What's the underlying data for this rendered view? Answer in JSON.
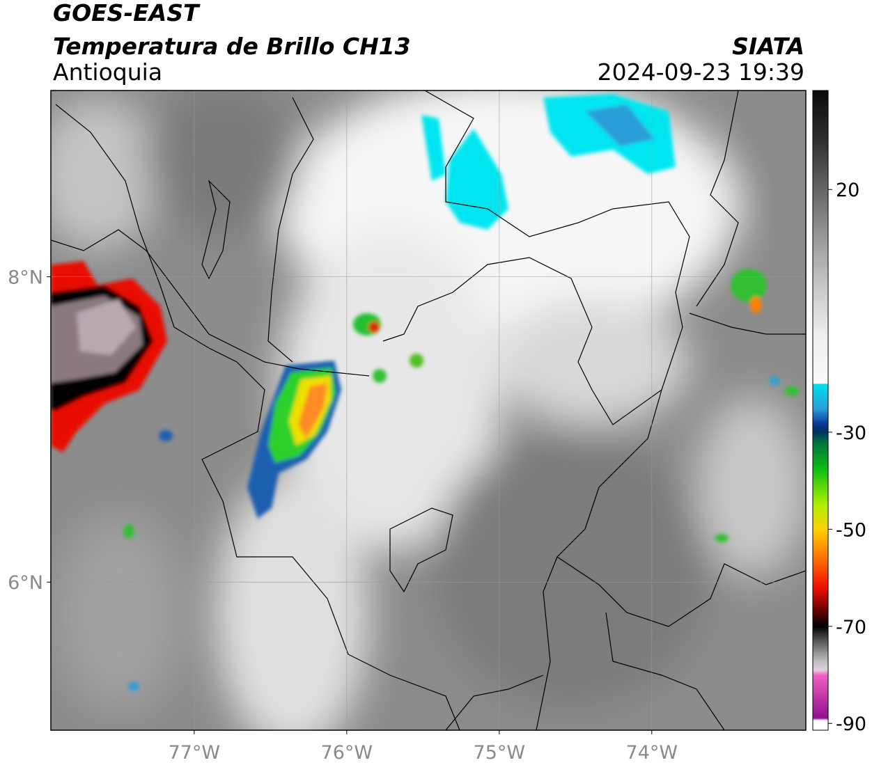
{
  "header": {
    "title": "GOES-EAST",
    "subtitle": "Temperatura de Brillo CH13",
    "region": "Antioquia",
    "source": "SIATA",
    "timestamp": "2024-09-23 19:39"
  },
  "map": {
    "lon_range": [
      -77.94,
      -72.99
    ],
    "lat_range": [
      5.03,
      9.22
    ],
    "lon_ticks": [
      {
        "value": -77,
        "label": "77°W"
      },
      {
        "value": -76,
        "label": "76°W"
      },
      {
        "value": -75,
        "label": "75°W"
      },
      {
        "value": -74,
        "label": "74°W"
      }
    ],
    "lat_ticks": [
      {
        "value": 8,
        "label": "8°N"
      },
      {
        "value": 6,
        "label": "6°N"
      }
    ]
  },
  "colorbar": {
    "range": [
      -91.4,
      40.4
    ],
    "ticks": [
      20,
      -30,
      -50,
      -70,
      -90
    ]
  }
}
